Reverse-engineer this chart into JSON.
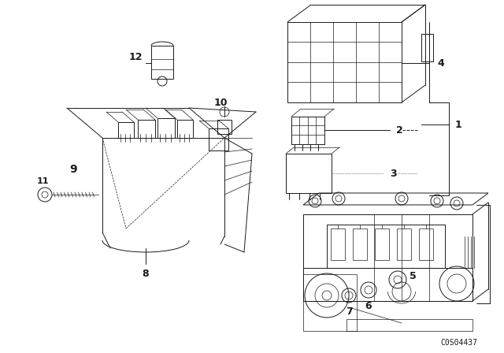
{
  "bg_color": "#ffffff",
  "line_color": "#1a1a1a",
  "part_code": "C0S04437",
  "lw_main": 1.0,
  "lw_thin": 0.5,
  "lw_med": 0.7
}
